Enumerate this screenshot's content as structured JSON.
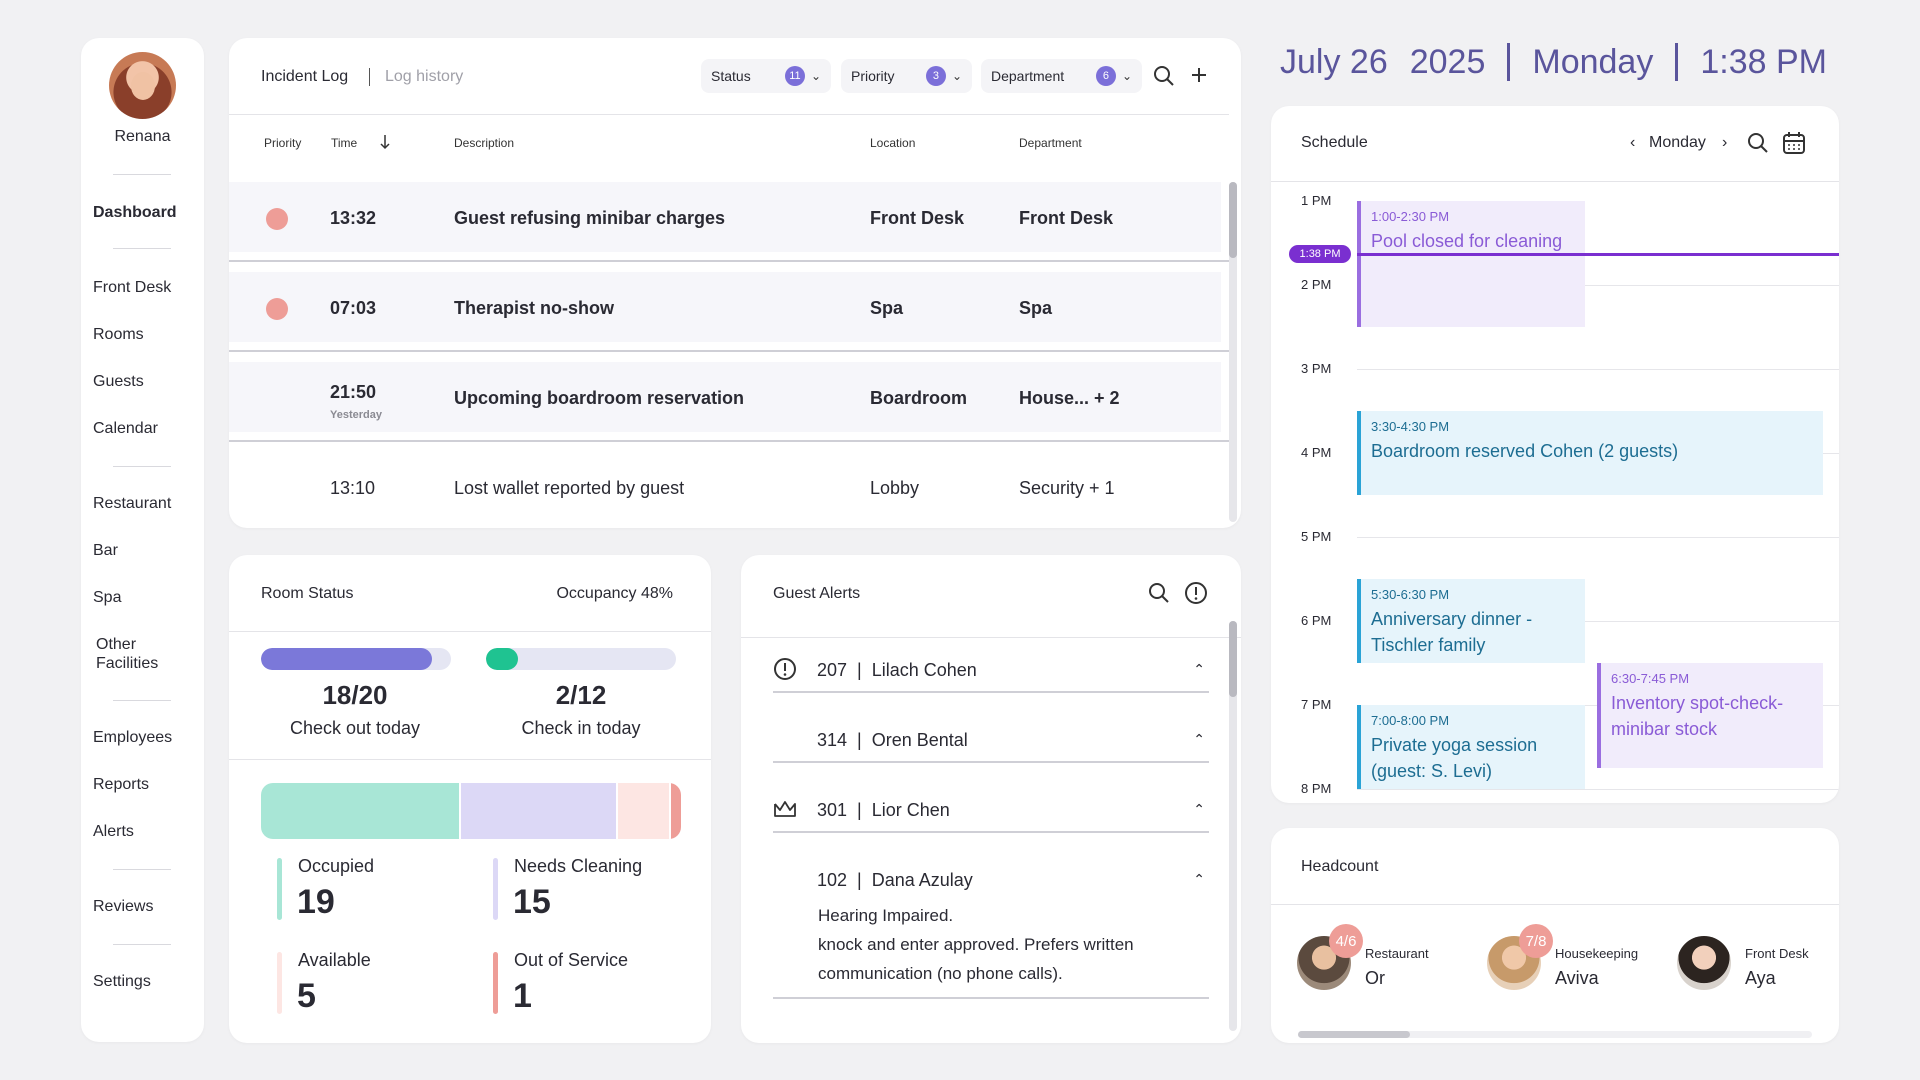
{
  "sidebar": {
    "user_name": "Renana",
    "items": [
      {
        "label": "Dashboard"
      },
      {
        "label": "Front Desk"
      },
      {
        "label": "Rooms"
      },
      {
        "label": "Guests"
      },
      {
        "label": "Calendar"
      },
      {
        "label": "Restaurant"
      },
      {
        "label": "Bar"
      },
      {
        "label": "Spa"
      },
      {
        "label": "Other Facilities"
      },
      {
        "label": "Employees"
      },
      {
        "label": "Reports"
      },
      {
        "label": "Alerts"
      },
      {
        "label": "Reviews"
      },
      {
        "label": "Settings"
      }
    ]
  },
  "incident_log": {
    "title": "Incident Log",
    "history_link": "Log history",
    "filters": [
      {
        "label": "Status",
        "count": "11"
      },
      {
        "label": "Priority",
        "count": "3"
      },
      {
        "label": "Department",
        "count": "6"
      }
    ],
    "columns": [
      "Priority",
      "Time",
      "Description",
      "Location",
      "Department"
    ],
    "rows": [
      {
        "time": "13:32",
        "sub": "",
        "description": "Guest refusing minibar charges",
        "location": "Front Desk",
        "department": "Front Desk",
        "priority_dot": true,
        "bold": true
      },
      {
        "time": "07:03",
        "sub": "",
        "description": "Therapist no-show",
        "location": "Spa",
        "department": "Spa",
        "priority_dot": true,
        "bold": true
      },
      {
        "time": "21:50",
        "sub": "Yesterday",
        "description": "Upcoming boardroom reservation",
        "location": "Boardroom",
        "department": "House... + 2",
        "priority_dot": false,
        "bold": true
      },
      {
        "time": "13:10",
        "sub": "",
        "description": "Lost wallet reported by guest",
        "location": "Lobby",
        "department": "Security + 1",
        "priority_dot": false,
        "bold": false
      }
    ]
  },
  "room_status": {
    "title": "Room Status",
    "occupancy": "Occupancy 48%",
    "checkout": {
      "value": "18/20",
      "label": "Check out today",
      "progress": 0.9
    },
    "checkin": {
      "value": "2/12",
      "label": "Check in today",
      "progress": 0.17
    },
    "breakdown": [
      {
        "label": "Occupied",
        "value": "19",
        "color": "#a8e6d6"
      },
      {
        "label": "Needs Cleaning",
        "value": "15",
        "color": "#dcd8f6"
      },
      {
        "label": "Available",
        "value": "5",
        "color": "#fde6e3"
      },
      {
        "label": "Out of Service",
        "value": "1",
        "color": "#ee9d97"
      }
    ]
  },
  "guest_alerts": {
    "title": "Guest Alerts",
    "items": [
      {
        "room": "207",
        "name": "Lilach Cohen",
        "icon": "alert-circle-icon"
      },
      {
        "room": "314",
        "name": "Oren Bental",
        "icon": ""
      },
      {
        "room": "301",
        "name": "Lior Chen",
        "icon": "crown-icon"
      },
      {
        "room": "102",
        "name": "Dana Azulay",
        "icon": ""
      }
    ],
    "expanded_detail": {
      "line1": "Hearing Impaired.",
      "line2": "knock and enter approved. Prefers written communication (no phone calls)."
    }
  },
  "datebar": {
    "date": "July 26",
    "year": "2025",
    "weekday": "Monday",
    "time": "1:38 PM"
  },
  "schedule": {
    "title": "Schedule",
    "day": "Monday",
    "hours": [
      "1 PM",
      "2 PM",
      "3 PM",
      "4 PM",
      "5 PM",
      "6 PM",
      "7 PM",
      "8 PM"
    ],
    "now_label": "1:38 PM",
    "now_hour": 13.633,
    "events": [
      {
        "time": "1:00-2:30  PM",
        "name": "Pool closed for cleaning",
        "start": 13.0,
        "end": 14.5,
        "column": 0,
        "kind": "purple"
      },
      {
        "time": "3:30-4:30  PM",
        "name": "Boardroom reserved Cohen (2 guests)",
        "start": 15.5,
        "end": 16.5,
        "column": -1,
        "kind": "blue"
      },
      {
        "time": "5:30-6:30  PM",
        "name": "Anniversary dinner - Tischler family",
        "start": 17.5,
        "end": 18.5,
        "column": 0,
        "kind": "blue"
      },
      {
        "time": "6:30-7:45  PM",
        "name": "Inventory spot-check- minibar stock",
        "start": 18.5,
        "end": 19.75,
        "column": 1,
        "kind": "purple"
      },
      {
        "time": "7:00-8:00  PM",
        "name": "Private yoga session (guest: S. Levi)",
        "start": 19.0,
        "end": 20.0,
        "column": 0,
        "kind": "blue"
      }
    ],
    "colors": {
      "purple_bg": "#f1ecfb",
      "purple_border": "#9a6ee0",
      "purple_text": "#8a5bd6",
      "blue_bg": "#e6f4fb",
      "blue_border": "#2aa3d6",
      "blue_text": "#1d6d92",
      "now": "#7a2fd0"
    }
  },
  "headcount": {
    "title": "Headcount",
    "teams": [
      {
        "dept": "Restaurant",
        "name": "Or",
        "badge": "4/6"
      },
      {
        "dept": "Housekeeping",
        "name": "Aviva",
        "badge": "7/8"
      },
      {
        "dept": "Front Desk",
        "name": "Aya",
        "badge": ""
      }
    ]
  }
}
